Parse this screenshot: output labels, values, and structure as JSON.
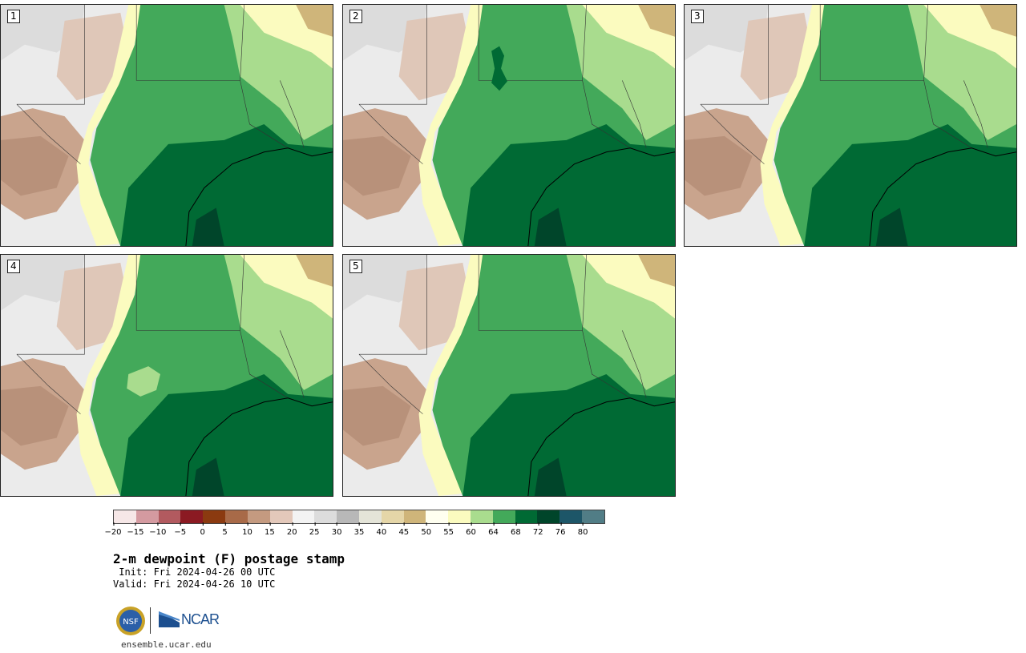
{
  "panels": [
    {
      "label": "1"
    },
    {
      "label": "2"
    },
    {
      "label": "3"
    },
    {
      "label": "4"
    },
    {
      "label": "5"
    }
  ],
  "colorbar": {
    "colors": [
      "#f6e7e7",
      "#d49aa0",
      "#b25a5f",
      "#8b1a22",
      "#8b3a10",
      "#a86a48",
      "#c49a80",
      "#e3c8ba",
      "#f3f3f3",
      "#dcdcdc",
      "#b8b8b8",
      "#e4e4d8",
      "#e5d6a8",
      "#cfb57a",
      "#fffff0",
      "#fbfbbf",
      "#a9dc8e",
      "#43a95a",
      "#006a34",
      "#00452a",
      "#1d5668",
      "#517d86"
    ],
    "tick_labels": [
      "−20",
      "−15",
      "−10",
      "−5",
      "0",
      "5",
      "10",
      "15",
      "20",
      "25",
      "30",
      "35",
      "40",
      "45",
      "50",
      "55",
      "60",
      "64",
      "68",
      "72",
      "76",
      "80"
    ]
  },
  "title": "2-m dewpoint (F) postage stamp",
  "init": " Init: Fri 2024-04-26 00 UTC",
  "valid": "Valid: Fri 2024-04-26 10 UTC",
  "logos": {
    "nsf": "NSF",
    "ncar": "NCAR"
  },
  "website": "ensemble.ucar.edu"
}
